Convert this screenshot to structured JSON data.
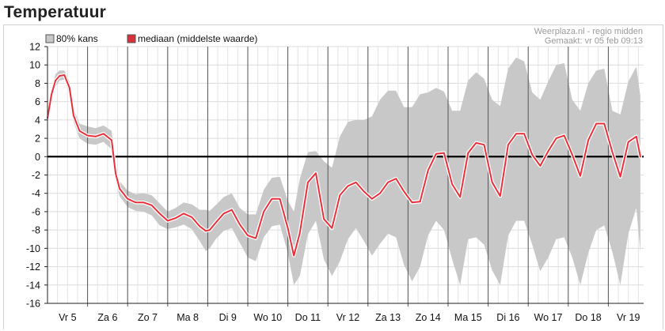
{
  "page": {
    "title": "Temperatuur"
  },
  "legend": {
    "band_label": "80% kans",
    "median_label": "mediaan (middelste waarde)",
    "band_color": "#c8c8c8",
    "median_color": "#d9313b",
    "placement": "top-left"
  },
  "source": {
    "line1": "Weerplaza.nl - regio midden",
    "line2": "Gemaakt: vr 05 feb 09:13"
  },
  "chart_data": {
    "type": "area",
    "title": "Temperatuur",
    "xlabel": "",
    "ylabel": "",
    "ylim": [
      -16,
      12
    ],
    "yticks": [
      -16,
      -14,
      -12,
      -10,
      -8,
      -6,
      -4,
      -2,
      0,
      2,
      4,
      6,
      8,
      10,
      12
    ],
    "grid": true,
    "x_unit": "days from Vr 5",
    "xlim": [
      0,
      14.8
    ],
    "day_labels": [
      "Vr 5",
      "Za 6",
      "Zo 7",
      "Ma 8",
      "Di 9",
      "Wo 10",
      "Do 11",
      "Vr 12",
      "Za 13",
      "Zo 14",
      "Ma 15",
      "Di 16",
      "Wo 17",
      "Do 18",
      "Vr 19"
    ],
    "series": [
      {
        "name": "mediaan (middelste waarde)",
        "kind": "line",
        "x": [
          0,
          0.1,
          0.2,
          0.3,
          0.42,
          0.55,
          0.65,
          0.8,
          1.0,
          1.2,
          1.4,
          1.6,
          1.7,
          1.8,
          2.0,
          2.2,
          2.4,
          2.6,
          2.8,
          3.0,
          3.2,
          3.4,
          3.6,
          3.8,
          3.95,
          4.05,
          4.2,
          4.4,
          4.6,
          4.8,
          5.0,
          5.2,
          5.4,
          5.6,
          5.8,
          6.0,
          6.15,
          6.3,
          6.5,
          6.7,
          6.9,
          7.1,
          7.3,
          7.5,
          7.7,
          7.9,
          8.1,
          8.3,
          8.5,
          8.7,
          8.9,
          9.1,
          9.3,
          9.5,
          9.7,
          9.9,
          10.1,
          10.3,
          10.5,
          10.7,
          10.9,
          11.1,
          11.3,
          11.5,
          11.7,
          11.9,
          12.1,
          12.3,
          12.5,
          12.7,
          12.9,
          13.1,
          13.3,
          13.5,
          13.7,
          13.9,
          14.1,
          14.3,
          14.5,
          14.7,
          14.8
        ],
        "y": [
          4.2,
          6.8,
          8.3,
          8.8,
          8.9,
          7.5,
          4.5,
          2.8,
          2.3,
          2.2,
          2.5,
          1.8,
          -1.8,
          -3.5,
          -4.6,
          -5.0,
          -5.0,
          -5.3,
          -6.2,
          -7.0,
          -6.7,
          -6.2,
          -6.6,
          -7.6,
          -8.1,
          -8.0,
          -7.2,
          -6.2,
          -5.8,
          -7.4,
          -8.6,
          -8.9,
          -6.0,
          -4.6,
          -4.6,
          -7.8,
          -10.8,
          -8.3,
          -2.8,
          -1.8,
          -6.8,
          -7.8,
          -4.2,
          -3.2,
          -2.8,
          -3.8,
          -4.6,
          -4.0,
          -2.8,
          -2.4,
          -3.8,
          -5.0,
          -4.9,
          -1.5,
          0.3,
          0.4,
          -3.0,
          -4.4,
          0.4,
          1.5,
          1.3,
          -2.8,
          -4.3,
          1.3,
          2.5,
          2.5,
          0.2,
          -1.0,
          0.6,
          2.0,
          2.3,
          0.2,
          -2.1,
          1.8,
          3.6,
          3.6,
          0.5,
          -2.2,
          1.6,
          2.2,
          0.0
        ]
      },
      {
        "name": "80% kans",
        "kind": "band",
        "x": [
          0,
          0.1,
          0.2,
          0.3,
          0.42,
          0.55,
          0.65,
          0.8,
          1.0,
          1.2,
          1.4,
          1.6,
          1.7,
          1.8,
          2.0,
          2.2,
          2.4,
          2.6,
          2.8,
          3.0,
          3.2,
          3.4,
          3.6,
          3.8,
          3.95,
          4.05,
          4.2,
          4.4,
          4.6,
          4.8,
          5.0,
          5.2,
          5.4,
          5.6,
          5.8,
          6.0,
          6.15,
          6.3,
          6.5,
          6.7,
          6.9,
          7.1,
          7.3,
          7.5,
          7.7,
          7.9,
          8.1,
          8.3,
          8.5,
          8.7,
          8.9,
          9.1,
          9.3,
          9.5,
          9.7,
          9.9,
          10.1,
          10.3,
          10.5,
          10.7,
          10.9,
          11.1,
          11.3,
          11.5,
          11.7,
          11.9,
          12.1,
          12.3,
          12.5,
          12.7,
          12.9,
          13.1,
          13.3,
          13.5,
          13.7,
          13.9,
          14.1,
          14.3,
          14.5,
          14.7,
          14.8
        ],
        "low": [
          3.8,
          6.2,
          7.6,
          8.3,
          8.4,
          6.8,
          3.8,
          2.0,
          1.4,
          1.3,
          1.6,
          0.8,
          -2.6,
          -4.3,
          -5.5,
          -5.9,
          -6.0,
          -6.4,
          -7.5,
          -7.9,
          -7.7,
          -7.4,
          -7.9,
          -9.2,
          -10.3,
          -10.0,
          -9.0,
          -8.1,
          -7.8,
          -9.4,
          -11.0,
          -11.4,
          -8.8,
          -7.6,
          -7.4,
          -10.5,
          -14.0,
          -13.0,
          -8.5,
          -7.0,
          -11.2,
          -13.0,
          -11.4,
          -9.0,
          -7.8,
          -9.2,
          -10.8,
          -9.5,
          -8.4,
          -8.8,
          -11.8,
          -13.6,
          -12.0,
          -8.6,
          -7.0,
          -8.0,
          -11.2,
          -14.0,
          -9.0,
          -8.8,
          -9.6,
          -12.4,
          -14.0,
          -8.6,
          -7.0,
          -7.0,
          -9.6,
          -12.5,
          -11.0,
          -9.0,
          -8.8,
          -11.0,
          -14.0,
          -10.5,
          -8.0,
          -7.5,
          -10.4,
          -14.0,
          -8.4,
          -5.6,
          -10.4
        ],
        "high": [
          4.6,
          7.4,
          9.0,
          9.4,
          9.4,
          8.2,
          5.2,
          3.6,
          3.3,
          3.1,
          3.4,
          2.8,
          -1.0,
          -2.7,
          -3.7,
          -4.1,
          -4.0,
          -4.2,
          -5.1,
          -6.0,
          -5.6,
          -5.0,
          -5.2,
          -5.8,
          -5.8,
          -5.9,
          -5.3,
          -4.4,
          -4.0,
          -5.6,
          -6.3,
          -6.3,
          -3.6,
          -2.3,
          -2.2,
          -4.8,
          -6.0,
          -2.4,
          0.5,
          0.6,
          -0.5,
          -1.2,
          2.2,
          3.8,
          4.0,
          4.0,
          4.4,
          6.2,
          7.2,
          7.2,
          5.4,
          5.4,
          6.8,
          7.0,
          7.5,
          7.1,
          5.0,
          5.0,
          8.3,
          9.2,
          8.5,
          6.2,
          5.5,
          9.6,
          10.8,
          10.4,
          7.0,
          6.2,
          8.2,
          10.0,
          10.2,
          6.2,
          5.0,
          8.0,
          9.4,
          9.6,
          5.0,
          4.6,
          8.2,
          9.8,
          6.6
        ]
      }
    ]
  }
}
